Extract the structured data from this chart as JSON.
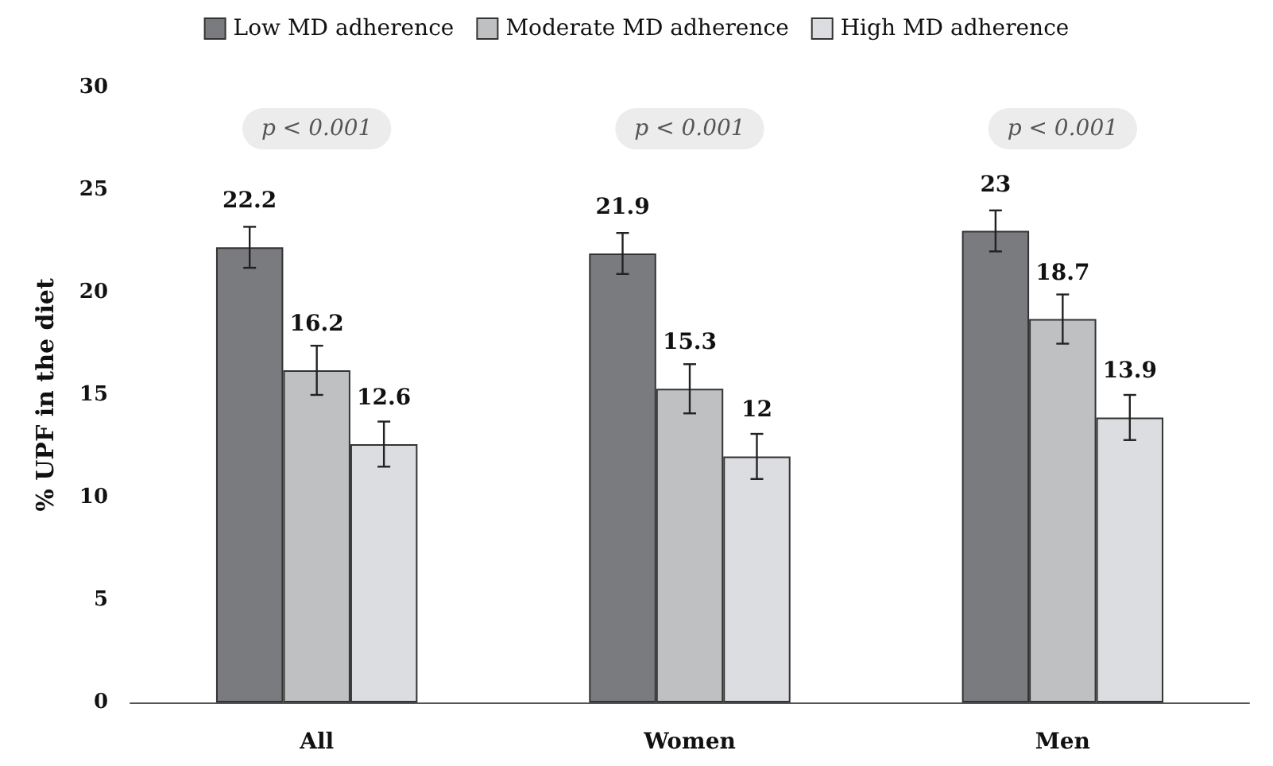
{
  "chart_data": {
    "type": "bar",
    "ylabel": "% UPF in the diet",
    "categories": [
      "All",
      "Women",
      "Men"
    ],
    "series": [
      {
        "name": "Low MD adherence",
        "color": "#7a7b7f",
        "values": [
          22.2,
          21.9,
          23
        ],
        "errors": [
          1,
          1,
          1
        ]
      },
      {
        "name": "Moderate MD adherence",
        "color": "#bfc0c2",
        "values": [
          16.2,
          15.3,
          18.7
        ],
        "errors": [
          1.2,
          1.2,
          1.2
        ]
      },
      {
        "name": "High MD adherence",
        "color": "#dcdde0",
        "values": [
          12.6,
          12,
          13.9
        ],
        "errors": [
          1.1,
          1.1,
          1.1
        ]
      }
    ],
    "ylim": [
      0,
      30
    ],
    "yticks": [
      0,
      5,
      10,
      15,
      20,
      25,
      30
    ],
    "grid": false,
    "legend": "top",
    "data_labels": true,
    "annotations": [
      "p < 0.001",
      "p < 0.001",
      "p < 0.001"
    ]
  }
}
